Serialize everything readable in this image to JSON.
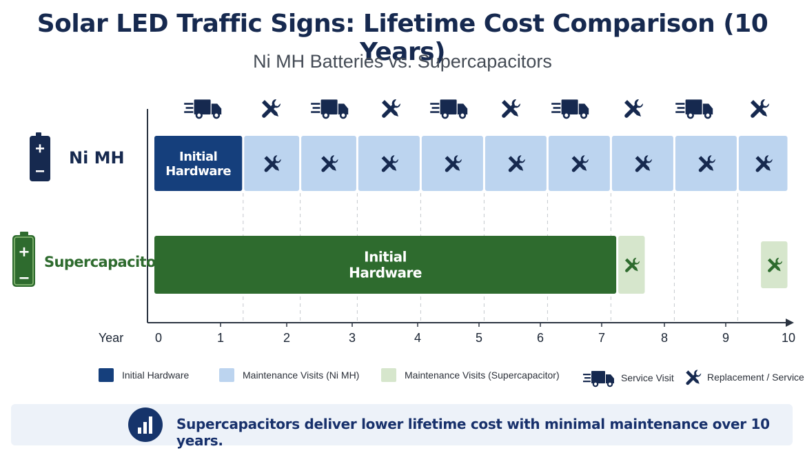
{
  "header": {
    "title": "Solar LED Traffic Signs: Lifetime Cost Comparison (10 Years)",
    "subtitle": "Ni MH Batteries vs. Supercapacitors"
  },
  "colors": {
    "initial_nimh": "#153f7c",
    "maintenance_nimh": "#bcd4ef",
    "initial_super": "#2e6b2e",
    "maintenance_super": "#d6e6cc",
    "nimh_label": "#16294f",
    "super_label": "#2e6b2e"
  },
  "chart_data": {
    "type": "timeline-bar",
    "xlabel": "Year",
    "xlim": [
      0,
      10
    ],
    "xticks": [
      "0",
      "1",
      "2",
      "3",
      "4",
      "5",
      "6",
      "7",
      "8",
      "9",
      "10"
    ],
    "top_icons": [
      "truck-icon",
      "wrench-icon",
      "truck-icon",
      "wrench-icon",
      "truck-icon",
      "wrench-icon",
      "truck-icon",
      "wrench-icon",
      "truck-icon",
      "wrench-icon"
    ],
    "rows": [
      {
        "label": "Ni MH",
        "icon": "battery-icon",
        "segments": [
          {
            "start": 0.0,
            "end": 1.4,
            "kind": "initial",
            "label": "Initial\nHardware"
          },
          {
            "start": 1.4,
            "end": 2.3,
            "kind": "maintenance"
          },
          {
            "start": 2.3,
            "end": 3.2,
            "kind": "maintenance"
          },
          {
            "start": 3.2,
            "end": 4.2,
            "kind": "maintenance"
          },
          {
            "start": 4.2,
            "end": 5.2,
            "kind": "maintenance"
          },
          {
            "start": 5.2,
            "end": 6.2,
            "kind": "maintenance"
          },
          {
            "start": 6.2,
            "end": 7.2,
            "kind": "maintenance"
          },
          {
            "start": 7.2,
            "end": 8.2,
            "kind": "maintenance"
          },
          {
            "start": 8.2,
            "end": 9.2,
            "kind": "maintenance"
          },
          {
            "start": 9.2,
            "end": 10.0,
            "kind": "maintenance"
          }
        ]
      },
      {
        "label": "Supercapacitor",
        "icon": "capacitor-icon",
        "segments": [
          {
            "start": 0.0,
            "end": 7.3,
            "kind": "initial",
            "label": "Initial\nHardware"
          },
          {
            "start": 7.3,
            "end": 7.75,
            "kind": "maintenance"
          },
          {
            "start": 9.55,
            "end": 10.0,
            "kind": "maintenance"
          }
        ]
      }
    ]
  },
  "legend": {
    "initial": "Initial Hardware",
    "maint_nimh": "Maintenance Visits (Ni MH)",
    "maint_super": "Maintenance Visits (Supercapacitor)",
    "service": "Service Visit",
    "replacement": "Replacement / Service"
  },
  "banner": {
    "icon": "bar-chart-icon",
    "text": "Supercapacitors deliver lower lifetime cost with minimal maintenance over 10 years."
  }
}
